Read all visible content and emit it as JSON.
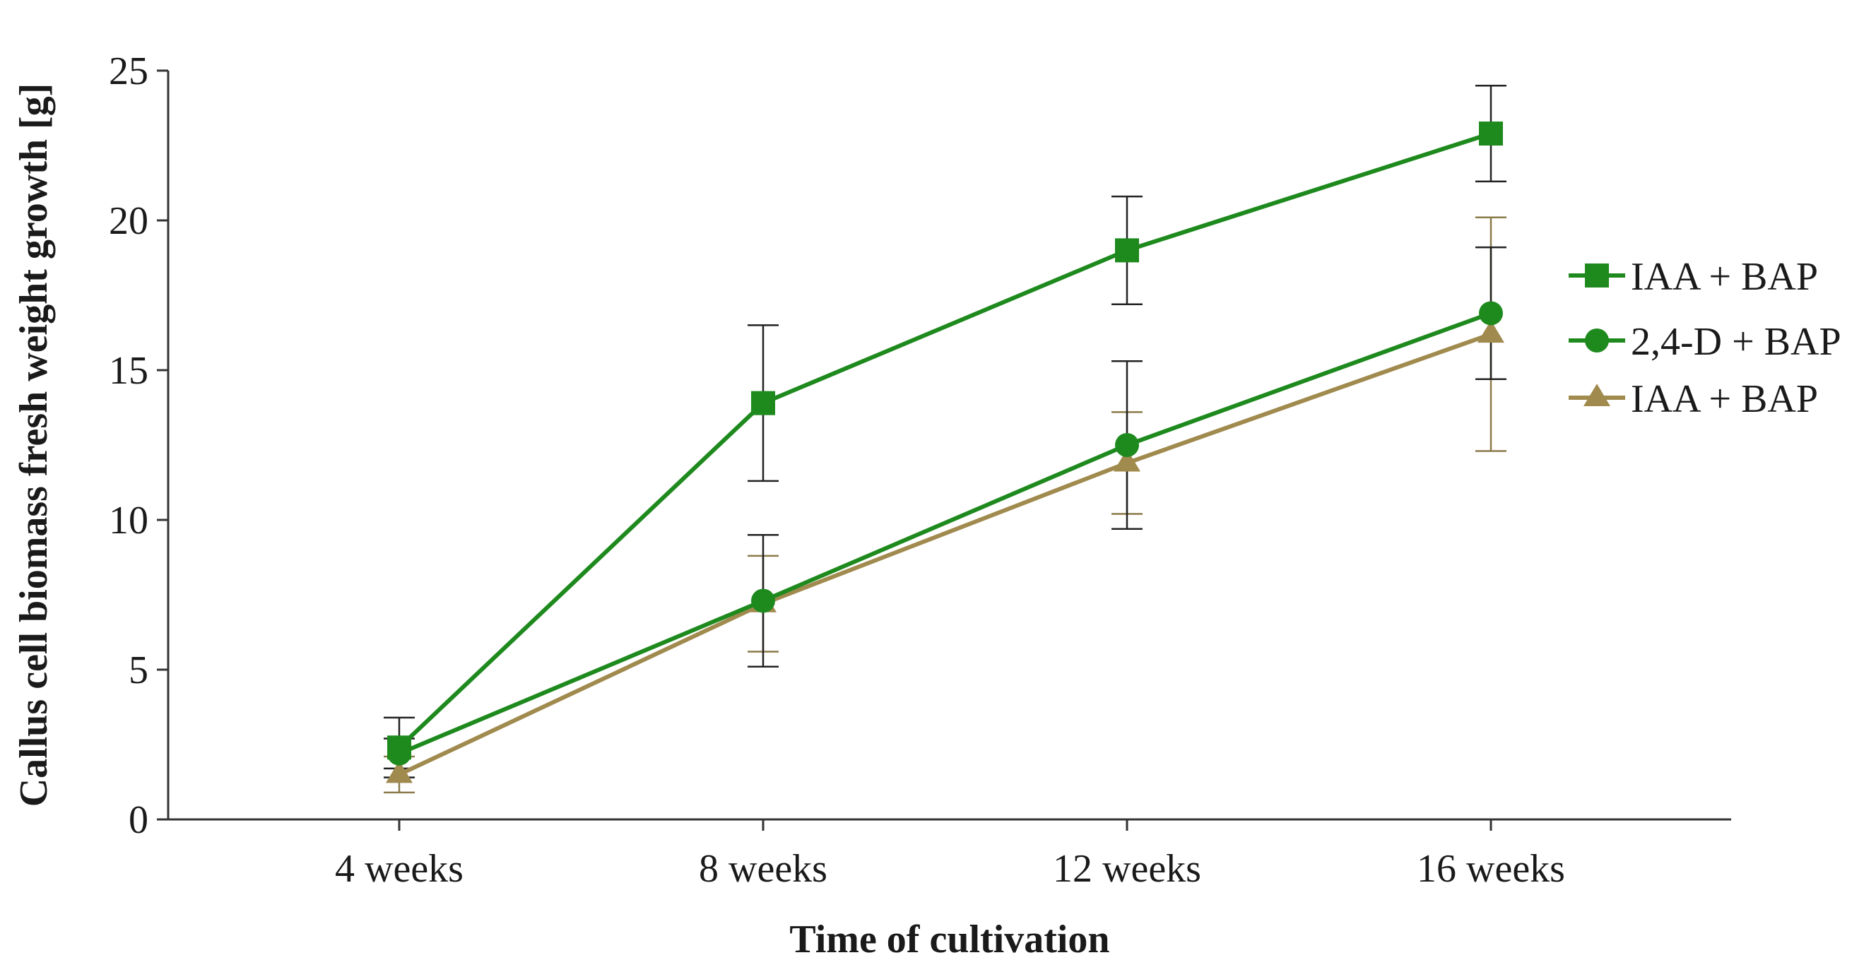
{
  "chart_data": {
    "type": "line",
    "title": "",
    "xlabel": "Time of cultivation",
    "ylabel": "Callus cell biomass fresh weight growth [g]",
    "categories": [
      "4 weeks",
      "8 weeks",
      "12 weeks",
      "16 weeks"
    ],
    "ylim": [
      0,
      25
    ],
    "yticks": [
      0,
      5,
      10,
      15,
      20,
      25
    ],
    "grid": false,
    "legend_position": "right",
    "series": [
      {
        "name": "IAA + BAP",
        "marker": "square",
        "color": "#1e8a1e",
        "values": [
          2.4,
          13.9,
          19.0,
          22.9
        ],
        "errors": [
          1.0,
          2.6,
          1.8,
          1.6
        ]
      },
      {
        "name": "2,4-D + BAP",
        "marker": "circle",
        "color": "#1e8a1e",
        "values": [
          2.2,
          7.3,
          12.5,
          16.9
        ],
        "errors": [
          0.5,
          2.2,
          2.8,
          2.2
        ]
      },
      {
        "name": "IAA + BAP",
        "marker": "triangle",
        "color": "#a08a4e",
        "values": [
          1.5,
          7.2,
          11.9,
          16.2
        ],
        "errors": [
          0.6,
          1.6,
          1.7,
          3.9
        ]
      }
    ]
  }
}
